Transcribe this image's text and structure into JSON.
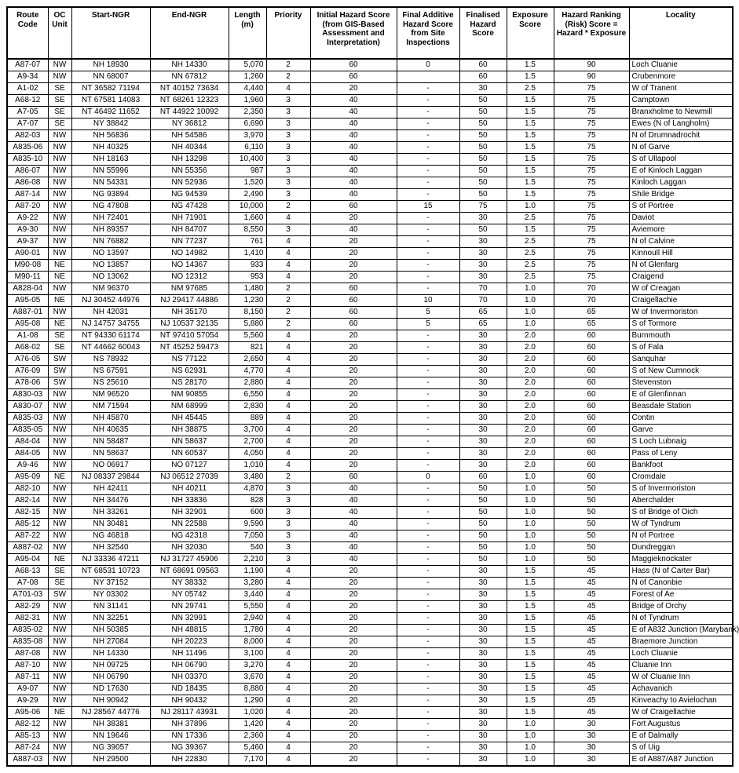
{
  "columns": [
    {
      "key": "route",
      "label": "Route\nCode",
      "width": 52,
      "align": "c"
    },
    {
      "key": "oc",
      "label": "OC\nUnit",
      "width": 30,
      "align": "c"
    },
    {
      "key": "startNGR",
      "label": "Start-NGR",
      "width": 100,
      "align": "c"
    },
    {
      "key": "endNGR",
      "label": "End-NGR",
      "width": 100,
      "align": "c"
    },
    {
      "key": "length",
      "label": "Length\n(m)",
      "width": 48,
      "align": "r"
    },
    {
      "key": "priority",
      "label": "Priority",
      "width": 56,
      "align": "c"
    },
    {
      "key": "initHaz",
      "label": "Initial Hazard Score\n(from GIS-Based\nAssessment and\nInterpretation)",
      "width": 110,
      "align": "c"
    },
    {
      "key": "addHaz",
      "label": "Final Additive\nHazard Score\nfrom Site\nInspections",
      "width": 80,
      "align": "c"
    },
    {
      "key": "finHaz",
      "label": "Finalised\nHazard\nScore",
      "width": 60,
      "align": "c"
    },
    {
      "key": "exposure",
      "label": "Exposure\nScore",
      "width": 60,
      "align": "c"
    },
    {
      "key": "riskScore",
      "label": "Hazard Ranking\n(Risk) Score =\nHazard * Exposure",
      "width": 96,
      "align": "c"
    },
    {
      "key": "locality",
      "label": "Locality",
      "width": 132,
      "align": "l"
    }
  ],
  "rows": [
    [
      "A87-07",
      "NW",
      "NH 18930",
      "NH 14330",
      "5,070",
      "2",
      "60",
      "0",
      "60",
      "1.5",
      "90",
      "Loch Cluanie"
    ],
    [
      "A9-34",
      "NW",
      "NN 68007",
      "NN 67812",
      "1,260",
      "2",
      "60",
      "",
      "60",
      "1.5",
      "90",
      "Crubenmore"
    ],
    [
      "A1-02",
      "SE",
      "NT 36582 71194",
      "NT 40152 73634",
      "4,440",
      "4",
      "20",
      "-",
      "30",
      "2.5",
      "75",
      "W of Tranent"
    ],
    [
      "A68-12",
      "SE",
      "NT 67581 14083",
      "NT 68261 12323",
      "1,960",
      "3",
      "40",
      "-",
      "50",
      "1.5",
      "75",
      "Camptown"
    ],
    [
      "A7-05",
      "SE",
      "NT 46492 11652",
      "NT 44922 10092",
      "2,350",
      "3",
      "40",
      "-",
      "50",
      "1.5",
      "75",
      "Branxholme to Newmill"
    ],
    [
      "A7-07",
      "SE",
      "NY 38842",
      "NY 36812",
      "6,690",
      "3",
      "40",
      "-",
      "50",
      "1.5",
      "75",
      "Ewes (N of Langholm)"
    ],
    [
      "A82-03",
      "NW",
      "NH 56836",
      "NH 54586",
      "3,970",
      "3",
      "40",
      "-",
      "50",
      "1.5",
      "75",
      "N of Drumnadrochit"
    ],
    [
      "A835-06",
      "NW",
      "NH 40325",
      "NH 40344",
      "6,110",
      "3",
      "40",
      "-",
      "50",
      "1.5",
      "75",
      "N of Garve"
    ],
    [
      "A835-10",
      "NW",
      "NH 18163",
      "NH 13298",
      "10,400",
      "3",
      "40",
      "-",
      "50",
      "1.5",
      "75",
      "S of Ullapool"
    ],
    [
      "A86-07",
      "NW",
      "NN 55996",
      "NN 55356",
      "987",
      "3",
      "40",
      "-",
      "50",
      "1.5",
      "75",
      "E of Kinloch Laggan"
    ],
    [
      "A86-08",
      "NW",
      "NN 54331",
      "NN 52936",
      "1,520",
      "3",
      "40",
      "-",
      "50",
      "1.5",
      "75",
      "Kinloch Laggan"
    ],
    [
      "A87-14",
      "NW",
      "NG 93894",
      "NG 94539",
      "2,490",
      "3",
      "40",
      "-",
      "50",
      "1.5",
      "75",
      "Shile Bridge"
    ],
    [
      "A87-20",
      "NW",
      "NG 47808",
      "NG 47428",
      "10,000",
      "2",
      "60",
      "15",
      "75",
      "1.0",
      "75",
      "S of Portree"
    ],
    [
      "A9-22",
      "NW",
      "NH 72401",
      "NH 71901",
      "1,660",
      "4",
      "20",
      "-",
      "30",
      "2.5",
      "75",
      "Daviot"
    ],
    [
      "A9-30",
      "NW",
      "NH 89357",
      "NH 84707",
      "8,550",
      "3",
      "40",
      "-",
      "50",
      "1.5",
      "75",
      "Aviemore"
    ],
    [
      "A9-37",
      "NW",
      "NN 76882",
      "NN 77237",
      "761",
      "4",
      "20",
      "-",
      "30",
      "2.5",
      "75",
      "N of Calvine"
    ],
    [
      "A90-01",
      "NW",
      "NO 13597",
      "NO 14982",
      "1,410",
      "4",
      "20",
      "-",
      "30",
      "2.5",
      "75",
      "Kinnoull Hill"
    ],
    [
      "M90-08",
      "NE",
      "NO 13857",
      "NO 14367",
      "933",
      "4",
      "20",
      "-",
      "30",
      "2.5",
      "75",
      "N of Glenfarg"
    ],
    [
      "M90-11",
      "NE",
      "NO 13062",
      "NO 12312",
      "953",
      "4",
      "20",
      "-",
      "30",
      "2.5",
      "75",
      "Craigend"
    ],
    [
      "A828-04",
      "NW",
      "NM 96370",
      "NM 97685",
      "1,480",
      "2",
      "60",
      "-",
      "70",
      "1.0",
      "70",
      "W of Creagan"
    ],
    [
      "A95-05",
      "NE",
      "NJ 30452 44976",
      "NJ 29417 44886",
      "1,230",
      "2",
      "60",
      "10",
      "70",
      "1.0",
      "70",
      "Craigellachie"
    ],
    [
      "A887-01",
      "NW",
      "NH 42031",
      "NH 35170",
      "8,150",
      "2",
      "60",
      "5",
      "65",
      "1.0",
      "65",
      "W of Invermoriston"
    ],
    [
      "A95-08",
      "NE",
      "NJ 14757 34755",
      "NJ 10537 32135",
      "5,880",
      "2",
      "60",
      "5",
      "65",
      "1.0",
      "65",
      "S of Tormore"
    ],
    [
      "A1-08",
      "SE",
      "NT 94330 61174",
      "NT 97410 57054",
      "5,560",
      "4",
      "20",
      "-",
      "30",
      "2.0",
      "60",
      "Burnmouth"
    ],
    [
      "A68-02",
      "SE",
      "NT 44662 60043",
      "NT 45252 59473",
      "821",
      "4",
      "20",
      "-",
      "30",
      "2.0",
      "60",
      "S of Fala"
    ],
    [
      "A76-05",
      "SW",
      "NS 78932",
      "NS 77122",
      "2,650",
      "4",
      "20",
      "-",
      "30",
      "2.0",
      "60",
      "Sanquhar"
    ],
    [
      "A76-09",
      "SW",
      "NS 67591",
      "NS 62931",
      "4,770",
      "4",
      "20",
      "-",
      "30",
      "2.0",
      "60",
      "S of New Cumnock"
    ],
    [
      "A78-06",
      "SW",
      "NS 25610",
      "NS 28170",
      "2,880",
      "4",
      "20",
      "-",
      "30",
      "2.0",
      "60",
      "Stevenston"
    ],
    [
      "A830-03",
      "NW",
      "NM 96520",
      "NM 90855",
      "6,550",
      "4",
      "20",
      "-",
      "30",
      "2.0",
      "60",
      "E of Glenfinnan"
    ],
    [
      "A830-07",
      "NW",
      "NM 71594",
      "NM 68999",
      "2,830",
      "4",
      "20",
      "-",
      "30",
      "2.0",
      "60",
      "Beasdale Station"
    ],
    [
      "A835-03",
      "NW",
      "NH 45870",
      "NH 45445",
      "889",
      "4",
      "20",
      "-",
      "30",
      "2.0",
      "60",
      "Contin"
    ],
    [
      "A835-05",
      "NW",
      "NH 40635",
      "NH 38875",
      "3,700",
      "4",
      "20",
      "-",
      "30",
      "2.0",
      "60",
      "Garve"
    ],
    [
      "A84-04",
      "NW",
      "NN 58487",
      "NN 58637",
      "2,700",
      "4",
      "20",
      "-",
      "30",
      "2.0",
      "60",
      "S Loch Lubnaig"
    ],
    [
      "A84-05",
      "NW",
      "NN 58637",
      "NN 60537",
      "4,050",
      "4",
      "20",
      "-",
      "30",
      "2.0",
      "60",
      "Pass of Leny"
    ],
    [
      "A9-46",
      "NW",
      "NO 06917",
      "NO 07127",
      "1,010",
      "4",
      "20",
      "-",
      "30",
      "2.0",
      "60",
      "Bankfoot"
    ],
    [
      "A95-09",
      "NE",
      "NJ 08337 29844",
      "NJ 06512 27039",
      "3,480",
      "2",
      "60",
      "0",
      "60",
      "1.0",
      "60",
      "Cromdale"
    ],
    [
      "A82-10",
      "NW",
      "NH 42411",
      "NH 40211",
      "4,870",
      "3",
      "40",
      "-",
      "50",
      "1.0",
      "50",
      "S of Invermoriston"
    ],
    [
      "A82-14",
      "NW",
      "NH 34476",
      "NH 33836",
      "828",
      "3",
      "40",
      "-",
      "50",
      "1.0",
      "50",
      "Aberchalder"
    ],
    [
      "A82-15",
      "NW",
      "NH 33261",
      "NH 32901",
      "600",
      "3",
      "40",
      "-",
      "50",
      "1.0",
      "50",
      "S of Bridge of Oich"
    ],
    [
      "A85-12",
      "NW",
      "NN 30481",
      "NN 22588",
      "9,590",
      "3",
      "40",
      "-",
      "50",
      "1.0",
      "50",
      "W of Tyndrum"
    ],
    [
      "A87-22",
      "NW",
      "NG 46818",
      "NG 42318",
      "7,050",
      "3",
      "40",
      "-",
      "50",
      "1.0",
      "50",
      "N of Portree"
    ],
    [
      "A887-02",
      "NW",
      "NH 32540",
      "NH 32030",
      "540",
      "3",
      "40",
      "-",
      "50",
      "1.0",
      "50",
      "Dundreggan"
    ],
    [
      "A95-04",
      "NE",
      "NJ 33336 47211",
      "NJ 31727 45906",
      "2,210",
      "3",
      "40",
      "-",
      "50",
      "1.0",
      "50",
      "Maggieknockater"
    ],
    [
      "A68-13",
      "SE",
      "NT 68531 10723",
      "NT 68691 09563",
      "1,190",
      "4",
      "20",
      "-",
      "30",
      "1.5",
      "45",
      "Hass (N of Carter Bar)"
    ],
    [
      "A7-08",
      "SE",
      "NY 37152",
      "NY 38332",
      "3,280",
      "4",
      "20",
      "-",
      "30",
      "1.5",
      "45",
      "N of Canonbie"
    ],
    [
      "A701-03",
      "SW",
      "NY 03302",
      "NY 05742",
      "3,440",
      "4",
      "20",
      "-",
      "30",
      "1.5",
      "45",
      "Forest of Ae"
    ],
    [
      "A82-29",
      "NW",
      "NN 31141",
      "NN 29741",
      "5,550",
      "4",
      "20",
      "-",
      "30",
      "1.5",
      "45",
      "Bridge of Orchy"
    ],
    [
      "A82-31",
      "NW",
      "NN 32251",
      "NN 32991",
      "2,940",
      "4",
      "20",
      "-",
      "30",
      "1.5",
      "45",
      "N of Tyndrum"
    ],
    [
      "A835-02",
      "NW",
      "NH 50385",
      "NH 48815",
      "1,780",
      "4",
      "20",
      "-",
      "30",
      "1.5",
      "45",
      "E of A832 Junction (Marybank)"
    ],
    [
      "A835-08",
      "NW",
      "NH 27084",
      "NH 20223",
      "8,000",
      "4",
      "20",
      "-",
      "30",
      "1.5",
      "45",
      "Braemore Junction"
    ],
    [
      "A87-08",
      "NW",
      "NH 14330",
      "NH 11496",
      "3,100",
      "4",
      "20",
      "-",
      "30",
      "1.5",
      "45",
      "Loch Cluanie"
    ],
    [
      "A87-10",
      "NW",
      "NH 09725",
      "NH 06790",
      "3,270",
      "4",
      "20",
      "-",
      "30",
      "1.5",
      "45",
      "Cluanie Inn"
    ],
    [
      "A87-11",
      "NW",
      "NH 06790",
      "NH 03370",
      "3,670",
      "4",
      "20",
      "-",
      "30",
      "1.5",
      "45",
      "W of Cluanie Inn"
    ],
    [
      "A9-07",
      "NW",
      "ND 17630",
      "ND 18435",
      "8,880",
      "4",
      "20",
      "-",
      "30",
      "1.5",
      "45",
      "Achavanich"
    ],
    [
      "A9-29",
      "NW",
      "NH 90942",
      "NH 90432",
      "1,290",
      "4",
      "20",
      "-",
      "30",
      "1.5",
      "45",
      "Kinveachy to Avielochan"
    ],
    [
      "A95-06",
      "NE",
      "NJ 28567 44776",
      "NJ 28117 43931",
      "1,020",
      "4",
      "20",
      "-",
      "30",
      "1.5",
      "45",
      "W of Craigellachie"
    ],
    [
      "A82-12",
      "NW",
      "NH 38381",
      "NH 37896",
      "1,420",
      "4",
      "20",
      "-",
      "30",
      "1.0",
      "30",
      "Fort Augustus"
    ],
    [
      "A85-13",
      "NW",
      "NN 19646",
      "NN 17336",
      "2,360",
      "4",
      "20",
      "-",
      "30",
      "1.0",
      "30",
      "E of Dalmally"
    ],
    [
      "A87-24",
      "NW",
      "NG 39057",
      "NG 39367",
      "5,460",
      "4",
      "20",
      "-",
      "30",
      "1.0",
      "30",
      "S of Uig"
    ],
    [
      "A887-03",
      "NW",
      "NH 29500",
      "NH 22830",
      "7,170",
      "4",
      "20",
      "-",
      "30",
      "1.0",
      "30",
      "E of A887/A87 Junction"
    ]
  ]
}
